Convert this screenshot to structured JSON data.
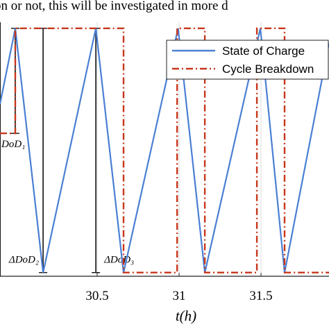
{
  "chart_data": {
    "type": "line",
    "text_above": "on or not, this will be investigated in more d",
    "x_label": "t(h)",
    "xlim": [
      29.907,
      31.915
    ],
    "ylim": [
      -0.015,
      1.025
    ],
    "xticks": [
      30.5,
      31,
      31.5
    ],
    "grid": true,
    "legend": "upper right",
    "series": [
      {
        "name": "State of Charge",
        "color": "#4a7fd4",
        "style": "solid",
        "x": [
          29.907,
          30.0,
          30.17,
          30.492,
          30.661,
          30.994,
          31.157,
          31.496,
          31.644,
          31.915
        ],
        "values": [
          0.69,
          1,
          0,
          1,
          0,
          1,
          0,
          1,
          0,
          0.94
        ]
      },
      {
        "name": "Cycle Breakdown",
        "color": "#c8361a",
        "style": "dashdot",
        "x": [
          29.907,
          30.0,
          30.0,
          30.661,
          30.661,
          30.988,
          30.988,
          31.157,
          31.157,
          31.475,
          31.475,
          31.644,
          31.644,
          31.915
        ],
        "values": [
          0.57,
          0.57,
          1,
          1,
          0,
          0,
          1,
          1,
          0,
          0,
          1,
          1,
          0,
          0
        ]
      }
    ],
    "annotations": [
      {
        "text": "DoD₁",
        "x": 30.0,
        "y": 0.57
      },
      {
        "text": "ΔDoD₂",
        "x": 30.17,
        "y": 0
      },
      {
        "text": "ΔDoD₃",
        "x": 30.492,
        "y": 0
      }
    ]
  }
}
